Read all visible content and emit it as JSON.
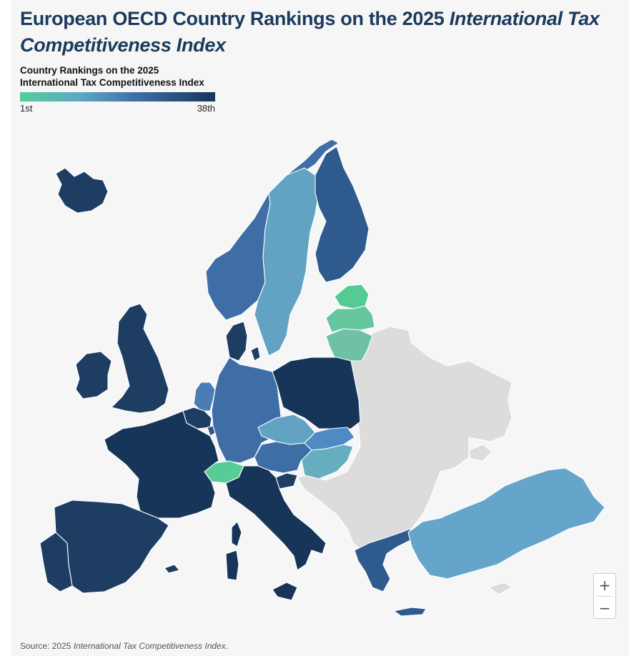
{
  "title": {
    "main": "European OECD Country Rankings on the 2025 ",
    "emphasis": "International Tax Competitiveness Index"
  },
  "legend": {
    "title_line1": "Country Rankings on the 2025",
    "title_line2": "International Tax Competitiveness Index",
    "min_label": "1st",
    "max_label": "38th",
    "colors": [
      "#56cd97",
      "#5fa8c4",
      "#3e6ea6",
      "#173559"
    ]
  },
  "map_colors": {
    "non_oecd": "#dcdcdc",
    "iceland": "#1d3d63",
    "norway": "#3f6ea6",
    "sweden": "#62a2c3",
    "finland": "#2e5a8e",
    "estonia": "#52cc92",
    "latvia": "#66c69d",
    "lithuania": "#6ec0a6",
    "denmark": "#1d3d63",
    "uk": "#1d3d63",
    "ireland": "#1d3d63",
    "netherlands": "#4a7db6",
    "belgium": "#1d3d63",
    "luxembourg": "#2c5588",
    "germany": "#3f6ea6",
    "poland": "#173559",
    "czechia": "#62a2c3",
    "slovakia": "#4f8ac4",
    "hungary": "#66aebf",
    "austria": "#3e6ea6",
    "slovenia": "#1d3d63",
    "switzerland": "#56cd97",
    "france": "#173559",
    "italy": "#173559",
    "spain": "#1d3d63",
    "portugal": "#1d3d63",
    "greece": "#2e5a8e",
    "turkey": "#65a5cb"
  },
  "zoom": {
    "in_label": "+",
    "out_label": "−"
  },
  "source": {
    "prefix": "Source: 2025 ",
    "emphasis": "International Tax Competitiveness Index",
    "suffix": "."
  }
}
